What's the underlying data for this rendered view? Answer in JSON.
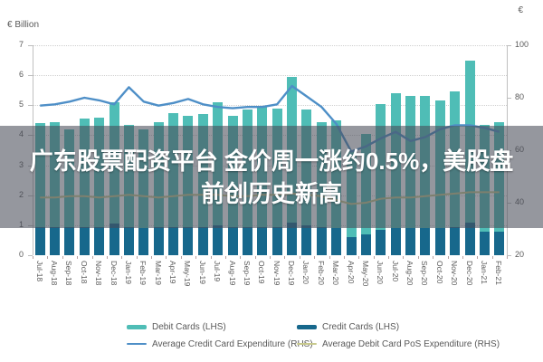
{
  "axes": {
    "left_title": "€ Billion",
    "right_title": "€",
    "left_ticks": [
      0,
      1,
      2,
      3,
      4,
      5,
      6,
      7
    ],
    "right_ticks": [
      20,
      40,
      60,
      80,
      100
    ],
    "left_range": [
      0,
      7
    ],
    "right_range": [
      20,
      100
    ]
  },
  "overlay": {
    "line1": "广东股票配资平台 金价周一涨约0.5%，美股盘",
    "line2": "前创历史新高"
  },
  "colors": {
    "debit_bar": "#4FBDB6",
    "credit_bar": "#17688C",
    "credit_line": "#4E8FC7",
    "debit_pos_line": "#C8C98D",
    "grid": "#cfcfcf",
    "axis_text": "#595959"
  },
  "legend": [
    {
      "label": "Debit Cards (LHS)",
      "type": "bar",
      "color": "#4FBDB6"
    },
    {
      "label": "Credit Cards (LHS)",
      "type": "bar",
      "color": "#17688C"
    },
    {
      "label": "Average Credit Card Expenditure (RHS)",
      "type": "line",
      "color": "#4E8FC7"
    },
    {
      "label": "Average Debit Card PoS Expenditure (RHS)",
      "type": "line",
      "color": "#C8C98D"
    }
  ],
  "chart_data": {
    "type": "combo-stacked-bar-line",
    "categories": [
      "Jul-18",
      "Aug-18",
      "Sep-18",
      "Oct-18",
      "Nov-18",
      "Dec-18",
      "Jan-19",
      "Feb-19",
      "Mar-19",
      "Apr-19",
      "May-19",
      "Jun-19",
      "Jul-19",
      "Aug-19",
      "Sep-19",
      "Oct-19",
      "Nov-19",
      "Dec-19",
      "Jan-20",
      "Feb-20",
      "Mar-20",
      "Apr-20",
      "May-20",
      "Jun-20",
      "Jul-20",
      "Aug-20",
      "Sep-20",
      "Oct-20",
      "Nov-20",
      "Dec-20",
      "Jan-21",
      "Feb-21"
    ],
    "series": [
      {
        "name": "Debit Cards (LHS)",
        "axis": "left",
        "kind": "bar",
        "values": [
          3.45,
          3.5,
          3.25,
          3.6,
          3.65,
          4.05,
          3.4,
          3.3,
          3.5,
          3.8,
          3.7,
          3.75,
          4.1,
          3.7,
          3.9,
          4.0,
          3.95,
          4.85,
          3.85,
          3.5,
          3.6,
          2.9,
          3.35,
          4.2,
          4.5,
          4.4,
          4.4,
          4.25,
          4.5,
          5.4,
          3.55,
          3.65
        ]
      },
      {
        "name": "Credit Cards (LHS)",
        "axis": "left",
        "kind": "bar",
        "values": [
          0.95,
          0.95,
          0.95,
          0.95,
          0.95,
          1.05,
          0.95,
          0.9,
          0.95,
          0.95,
          0.95,
          0.95,
          1.0,
          0.95,
          0.95,
          0.95,
          0.95,
          1.1,
          1.0,
          0.95,
          0.9,
          0.6,
          0.7,
          0.85,
          0.9,
          0.9,
          0.9,
          0.9,
          0.95,
          1.1,
          0.8,
          0.8
        ]
      },
      {
        "name": "Average Credit Card Expenditure (RHS)",
        "axis": "right",
        "kind": "line",
        "values": [
          77,
          77.5,
          78.5,
          80,
          79,
          77.5,
          84,
          78.5,
          77,
          78,
          79.5,
          77.5,
          76.5,
          76,
          76.5,
          76.5,
          77.5,
          84.5,
          80.5,
          76.5,
          70,
          59.5,
          61.5,
          64.5,
          67,
          63.5,
          65,
          68,
          69.5,
          69.5,
          68.5,
          67
        ]
      },
      {
        "name": "Average Debit Card PoS Expenditure (RHS)",
        "axis": "right",
        "kind": "line",
        "values": [
          42,
          42,
          42.5,
          42.5,
          42,
          42.5,
          43,
          42.5,
          42,
          42.5,
          43,
          43,
          43,
          42.5,
          42.5,
          43,
          43,
          43.5,
          43,
          42.5,
          41,
          39.5,
          40,
          41.5,
          42,
          42,
          42.5,
          43,
          43.5,
          44,
          44,
          44
        ]
      }
    ],
    "left_axis_label": "€ Billion",
    "grid": "dotted-horizontal",
    "legend_position": "bottom"
  }
}
